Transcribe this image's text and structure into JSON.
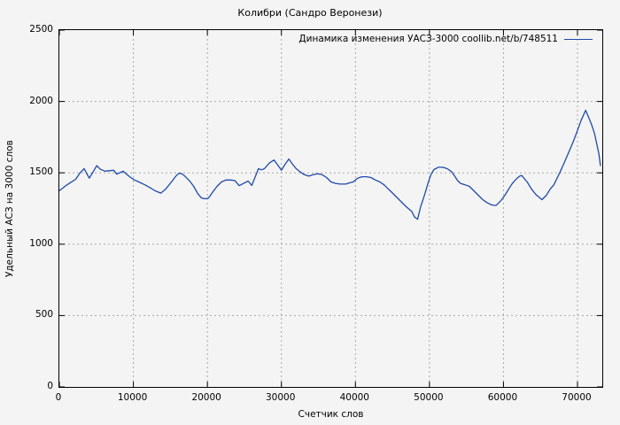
{
  "title": "Колибри (Сандро Веронези)",
  "colors": {
    "line": "#1f4aa8",
    "grid": "#a8a8a8",
    "axis": "#000000",
    "background": "#f4f4f4",
    "text": "#000000"
  },
  "chart_data": {
    "type": "line",
    "title": "Колибри (Сандро Веронези)",
    "xlabel": "Счетчик слов",
    "ylabel": "Удельный АСЗ на 3000 слов",
    "legend": [
      "Динамика изменения УАСЗ-3000 coollib.net/b/748511"
    ],
    "legend_position": "top-right-inside",
    "grid": true,
    "xlim": [
      0,
      73350
    ],
    "ylim": [
      0,
      2500
    ],
    "xticks": [
      0,
      10000,
      20000,
      30000,
      40000,
      50000,
      60000,
      70000
    ],
    "yticks": [
      0,
      500,
      1000,
      1500,
      2000,
      2500
    ],
    "series": [
      {
        "name": "Динамика изменения УАСЗ-3000 coollib.net/b/748511",
        "color": "#1f4aa8",
        "points": [
          [
            0,
            1375
          ],
          [
            400,
            1390
          ],
          [
            1000,
            1415
          ],
          [
            1600,
            1435
          ],
          [
            2200,
            1455
          ],
          [
            2800,
            1500
          ],
          [
            3350,
            1530
          ],
          [
            3700,
            1495
          ],
          [
            4050,
            1463
          ],
          [
            4550,
            1505
          ],
          [
            5050,
            1550
          ],
          [
            5550,
            1525
          ],
          [
            6150,
            1512
          ],
          [
            6750,
            1515
          ],
          [
            7350,
            1518
          ],
          [
            7750,
            1491
          ],
          [
            8150,
            1500
          ],
          [
            8600,
            1512
          ],
          [
            9150,
            1487
          ],
          [
            9650,
            1467
          ],
          [
            10150,
            1450
          ],
          [
            10750,
            1436
          ],
          [
            11550,
            1416
          ],
          [
            12350,
            1393
          ],
          [
            12950,
            1374
          ],
          [
            13700,
            1358
          ],
          [
            14350,
            1385
          ],
          [
            15150,
            1436
          ],
          [
            15750,
            1477
          ],
          [
            16150,
            1497
          ],
          [
            16550,
            1494
          ],
          [
            16950,
            1477
          ],
          [
            17550,
            1446
          ],
          [
            18150,
            1405
          ],
          [
            18700,
            1354
          ],
          [
            19200,
            1323
          ],
          [
            19700,
            1318
          ],
          [
            20150,
            1323
          ],
          [
            20700,
            1364
          ],
          [
            21300,
            1405
          ],
          [
            21900,
            1436
          ],
          [
            22500,
            1450
          ],
          [
            23100,
            1450
          ],
          [
            23700,
            1446
          ],
          [
            24300,
            1410
          ],
          [
            24900,
            1426
          ],
          [
            25500,
            1442
          ],
          [
            26000,
            1412
          ],
          [
            26500,
            1477
          ],
          [
            26900,
            1529
          ],
          [
            27300,
            1521
          ],
          [
            27700,
            1529
          ],
          [
            28400,
            1570
          ],
          [
            29000,
            1590
          ],
          [
            29500,
            1555
          ],
          [
            30000,
            1518
          ],
          [
            30500,
            1560
          ],
          [
            31000,
            1597
          ],
          [
            31500,
            1560
          ],
          [
            32000,
            1529
          ],
          [
            32500,
            1508
          ],
          [
            33100,
            1487
          ],
          [
            33700,
            1477
          ],
          [
            34300,
            1487
          ],
          [
            34900,
            1494
          ],
          [
            35500,
            1487
          ],
          [
            36100,
            1467
          ],
          [
            36700,
            1436
          ],
          [
            37300,
            1426
          ],
          [
            37900,
            1421
          ],
          [
            38700,
            1421
          ],
          [
            39300,
            1432
          ],
          [
            39700,
            1436
          ],
          [
            40300,
            1463
          ],
          [
            40900,
            1473
          ],
          [
            41500,
            1473
          ],
          [
            42100,
            1467
          ],
          [
            42700,
            1450
          ],
          [
            43300,
            1436
          ],
          [
            43900,
            1415
          ],
          [
            44300,
            1394
          ],
          [
            44700,
            1374
          ],
          [
            45300,
            1343
          ],
          [
            45900,
            1312
          ],
          [
            46500,
            1281
          ],
          [
            47000,
            1256
          ],
          [
            47600,
            1230
          ],
          [
            48000,
            1190
          ],
          [
            48400,
            1175
          ],
          [
            48800,
            1260
          ],
          [
            49400,
            1354
          ],
          [
            49800,
            1426
          ],
          [
            50200,
            1487
          ],
          [
            50600,
            1523
          ],
          [
            51200,
            1539
          ],
          [
            51800,
            1539
          ],
          [
            52400,
            1529
          ],
          [
            53000,
            1508
          ],
          [
            53400,
            1477
          ],
          [
            53800,
            1446
          ],
          [
            54200,
            1426
          ],
          [
            54800,
            1416
          ],
          [
            55400,
            1405
          ],
          [
            56000,
            1374
          ],
          [
            56600,
            1343
          ],
          [
            57200,
            1312
          ],
          [
            57800,
            1291
          ],
          [
            58400,
            1275
          ],
          [
            59000,
            1271
          ],
          [
            59600,
            1302
          ],
          [
            60200,
            1343
          ],
          [
            60800,
            1394
          ],
          [
            61200,
            1426
          ],
          [
            61800,
            1461
          ],
          [
            62200,
            1477
          ],
          [
            62500,
            1481
          ],
          [
            62800,
            1460
          ],
          [
            63200,
            1436
          ],
          [
            63800,
            1385
          ],
          [
            64400,
            1347
          ],
          [
            65200,
            1312
          ],
          [
            65800,
            1343
          ],
          [
            66300,
            1385
          ],
          [
            66800,
            1416
          ],
          [
            67200,
            1457
          ],
          [
            67600,
            1500
          ],
          [
            68200,
            1570
          ],
          [
            68800,
            1642
          ],
          [
            69400,
            1715
          ],
          [
            70000,
            1797
          ],
          [
            70500,
            1869
          ],
          [
            71100,
            1938
          ],
          [
            71500,
            1890
          ],
          [
            71900,
            1838
          ],
          [
            72300,
            1776
          ],
          [
            72600,
            1704
          ],
          [
            72900,
            1632
          ],
          [
            73100,
            1550
          ]
        ]
      }
    ]
  }
}
